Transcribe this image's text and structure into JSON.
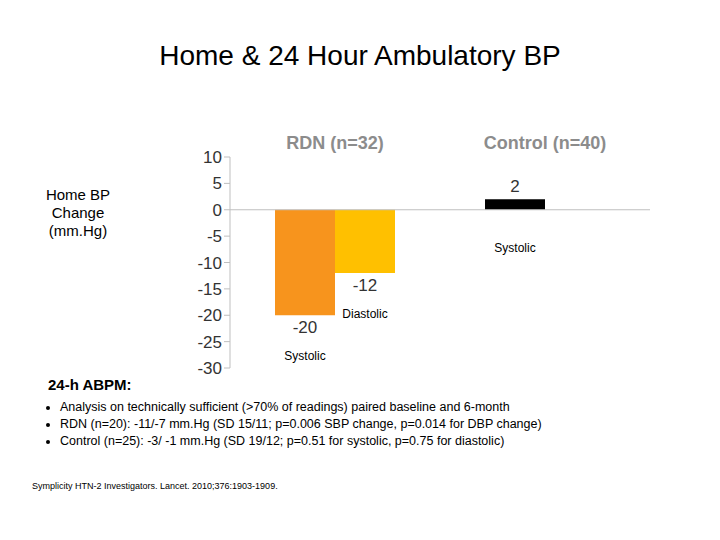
{
  "chart_data": {
    "type": "bar",
    "title": "Home & 24 Hour Ambulatory BP",
    "y_label": "Home BP Change (mm.Hg)",
    "categories": [
      "RDN (n=32)",
      "Control (n=40)"
    ],
    "series": [
      {
        "name": "Systolic",
        "colors": [
          "#F7941D",
          "#000000"
        ],
        "values": [
          -20,
          2
        ]
      },
      {
        "name": "Diastolic",
        "colors": [
          "#FFC000",
          "#FFC000"
        ],
        "values": [
          -12,
          0
        ]
      }
    ],
    "ylim": [
      -30,
      10
    ],
    "yticks": [
      -30,
      -25,
      -20,
      -15,
      -10,
      -5,
      0,
      5,
      10
    ],
    "grid": false,
    "data_labels": true
  },
  "notes": {
    "heading": "24-h ABPM:",
    "bullets": [
      "Analysis on technically sufficient (>70% of readings) paired baseline and 6-month",
      "RDN (n=20): -11/-7 mm.Hg (SD 15/11; p=0.006 SBP change, p=0.014 for DBP change)",
      "Control (n=25): -3/ -1 mm.Hg (SD 19/12; p=0.51 for systolic, p=0.75 for diastolic)"
    ]
  },
  "source": "Symplicity HTN-2 Investigators. Lancet. 2010;376:1903-1909."
}
